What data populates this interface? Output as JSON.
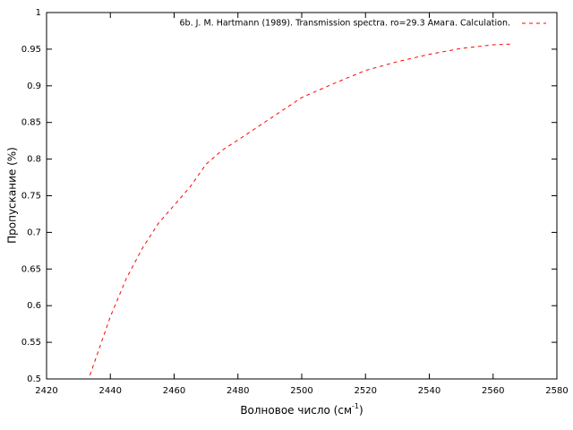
{
  "chart_data": {
    "type": "line",
    "x_label": {
      "text": "Волновое число (см",
      "superscript": "-1",
      "suffix": ")"
    },
    "y_label": "Пропускание (%)",
    "x": [
      2433.6,
      2440,
      2445,
      2450,
      2455,
      2460,
      2465,
      2470,
      2475,
      2480,
      2490,
      2500,
      2510,
      2520,
      2530,
      2540,
      2550,
      2560,
      2566
    ],
    "series": [
      {
        "name": "6b. J. M. Hartmann (1989). Transmission spectra. ro=29.3 Амага. Calculation.",
        "color": "#ff0000",
        "values": [
          0.505,
          0.585,
          0.637,
          0.678,
          0.712,
          0.737,
          0.762,
          0.793,
          0.812,
          0.826,
          0.855,
          0.884,
          0.903,
          0.921,
          0.933,
          0.943,
          0.951,
          0.956,
          0.957
        ]
      }
    ],
    "xlim": [
      2420,
      2580
    ],
    "xticks": [
      2420,
      2440,
      2460,
      2480,
      2500,
      2520,
      2540,
      2560,
      2580
    ],
    "ylim": [
      0.5,
      1
    ],
    "yticks": [
      0.5,
      0.55,
      0.6,
      0.65,
      0.7,
      0.75,
      0.8,
      0.85,
      0.9,
      0.95,
      1
    ],
    "legend": "top-right",
    "grid": false
  }
}
